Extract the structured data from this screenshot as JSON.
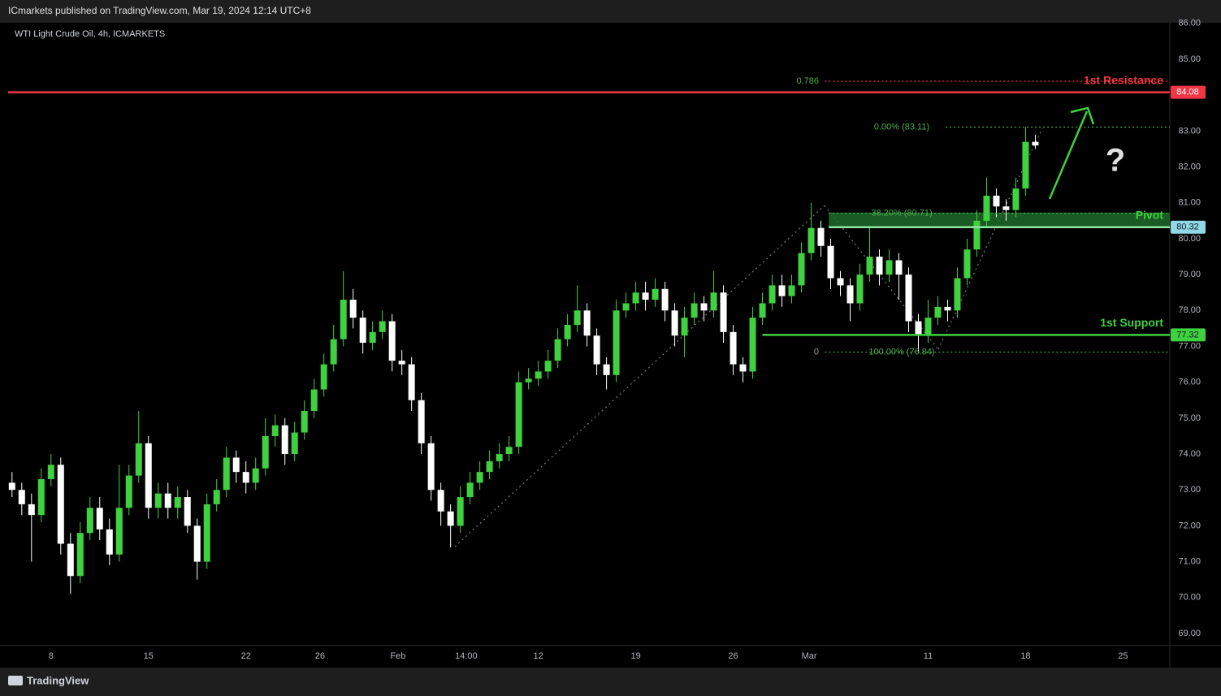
{
  "header": {
    "publisher": "ICmarkets published on TradingView.com, Mar 19, 2024 12:14 UTC+8"
  },
  "footer": {
    "brand": "TradingView"
  },
  "chart_data": {
    "type": "candlestick",
    "title": "WTI Light Crude Oil, 4h, ICMARKETS",
    "up_color": "#3fd13f",
    "down_color": "#ffffff",
    "grid": false,
    "x": [
      -2,
      -1.5,
      -1,
      -0.5,
      0,
      0.5,
      1,
      1.5,
      2,
      2.5,
      3,
      3.5,
      4,
      4.5,
      5,
      5.5,
      6,
      6.5,
      7,
      7.5,
      8,
      8.5,
      9,
      9.5,
      10,
      10.5,
      11,
      11.5,
      12,
      12.5,
      13,
      13.5,
      14,
      14.5,
      15,
      15.5,
      16,
      16.5,
      17,
      17.5,
      18,
      18.5,
      19,
      19.5,
      20,
      20.5,
      21,
      21.5,
      22,
      22.5,
      23,
      23.5,
      24,
      24.5,
      25,
      25.5,
      26,
      26.5,
      27,
      27.5,
      28,
      28.5,
      29,
      29.5,
      30,
      30.5,
      31,
      31.5,
      32,
      32.5,
      33,
      33.5,
      34,
      34.5,
      35,
      35.5,
      36,
      36.5,
      37,
      37.5,
      38,
      38.5,
      39,
      39.5,
      40,
      40.5,
      41,
      41.5,
      42,
      42.5,
      43,
      43.5,
      44,
      44.5,
      45,
      45.5,
      46,
      46.5,
      47,
      47.5,
      48,
      48.5,
      49,
      49.5,
      50,
      50.5
    ],
    "open": [
      73.2,
      73.0,
      72.6,
      72.3,
      73.3,
      73.7,
      71.5,
      70.6,
      71.8,
      72.5,
      71.9,
      71.2,
      72.5,
      73.4,
      74.3,
      72.5,
      72.9,
      72.5,
      72.8,
      72.0,
      71.0,
      72.6,
      73.0,
      73.9,
      73.5,
      73.2,
      73.6,
      74.5,
      74.8,
      74.0,
      74.6,
      75.2,
      75.8,
      76.5,
      77.2,
      78.3,
      77.8,
      77.1,
      77.4,
      77.7,
      76.6,
      76.5,
      75.5,
      74.3,
      73.0,
      72.4,
      72.0,
      72.8,
      73.2,
      73.5,
      73.8,
      74.0,
      74.2,
      76.0,
      76.1,
      76.3,
      76.6,
      77.2,
      77.6,
      78.0,
      77.3,
      76.5,
      76.2,
      78.0,
      78.2,
      78.5,
      78.3,
      78.6,
      78.0,
      77.3,
      77.8,
      78.2,
      78.0,
      78.5,
      77.4,
      76.5,
      76.3,
      77.8,
      78.2,
      78.7,
      78.4,
      78.7,
      79.6,
      80.3,
      79.8,
      78.9,
      78.7,
      78.2,
      79.0,
      79.5,
      79.0,
      79.4,
      79.0,
      77.7,
      77.3,
      77.8,
      78.1,
      78.0,
      78.9,
      79.7,
      80.5,
      81.2,
      80.9,
      80.8,
      81.4,
      82.7
    ],
    "high": [
      73.5,
      73.2,
      72.9,
      73.6,
      74.0,
      73.9,
      71.8,
      72.1,
      72.8,
      72.8,
      72.2,
      73.7,
      73.7,
      75.2,
      74.5,
      73.2,
      73.2,
      73.1,
      73.0,
      72.2,
      72.9,
      73.3,
      74.2,
      74.1,
      73.8,
      73.9,
      75.0,
      75.1,
      75.0,
      74.9,
      75.5,
      76.1,
      76.8,
      77.6,
      79.1,
      78.6,
      78.0,
      77.7,
      78.0,
      77.9,
      76.9,
      76.7,
      75.7,
      74.5,
      73.2,
      72.6,
      73.1,
      73.5,
      73.8,
      74.1,
      74.3,
      74.5,
      76.3,
      76.4,
      76.6,
      76.9,
      77.5,
      77.9,
      78.7,
      78.2,
      77.5,
      76.7,
      78.3,
      78.5,
      78.8,
      78.8,
      78.9,
      78.8,
      78.2,
      78.1,
      78.5,
      78.4,
      79.1,
      78.7,
      77.6,
      76.7,
      78.1,
      78.5,
      79.0,
      79.0,
      79.0,
      79.9,
      81.0,
      80.5,
      80.0,
      79.1,
      78.9,
      79.3,
      80.3,
      79.7,
      79.7,
      79.6,
      79.2,
      77.9,
      78.3,
      78.4,
      78.3,
      79.2,
      80.0,
      80.8,
      81.7,
      81.4,
      81.1,
      81.7,
      83.11,
      82.9
    ],
    "low": [
      72.8,
      72.3,
      71.0,
      72.1,
      73.1,
      71.2,
      70.1,
      70.4,
      71.6,
      71.6,
      70.9,
      71.0,
      72.3,
      73.2,
      72.2,
      72.2,
      72.2,
      72.2,
      71.8,
      70.5,
      70.8,
      72.4,
      72.8,
      73.2,
      72.9,
      73.0,
      73.4,
      74.2,
      73.7,
      73.8,
      74.4,
      75.0,
      75.6,
      76.3,
      77.0,
      77.5,
      76.8,
      76.9,
      77.2,
      76.3,
      76.2,
      75.2,
      74.0,
      72.7,
      72.0,
      71.4,
      71.8,
      72.6,
      73.0,
      73.3,
      73.6,
      73.8,
      74.0,
      75.8,
      75.9,
      76.1,
      76.4,
      77.0,
      77.4,
      77.0,
      76.2,
      75.8,
      76.0,
      77.8,
      78.0,
      78.0,
      78.1,
      77.7,
      77.0,
      76.7,
      77.6,
      77.7,
      77.8,
      77.1,
      76.2,
      76.0,
      76.1,
      77.6,
      78.0,
      78.1,
      78.2,
      78.5,
      79.4,
      79.5,
      78.6,
      78.4,
      77.7,
      78.0,
      78.8,
      78.7,
      78.8,
      78.3,
      77.4,
      76.84,
      77.1,
      77.6,
      77.7,
      77.8,
      78.7,
      79.5,
      80.3,
      80.6,
      80.5,
      80.6,
      81.2,
      82.5
    ],
    "close": [
      73.0,
      72.6,
      72.3,
      73.3,
      73.7,
      71.5,
      70.6,
      71.8,
      72.5,
      71.9,
      71.2,
      72.5,
      73.4,
      74.3,
      72.5,
      72.9,
      72.5,
      72.8,
      72.0,
      71.0,
      72.6,
      73.0,
      73.9,
      73.5,
      73.2,
      73.6,
      74.5,
      74.8,
      74.0,
      74.6,
      75.2,
      75.8,
      76.5,
      77.2,
      78.3,
      77.8,
      77.1,
      77.4,
      77.7,
      76.6,
      76.5,
      75.5,
      74.3,
      73.0,
      72.4,
      72.0,
      72.8,
      73.2,
      73.5,
      73.8,
      74.0,
      74.2,
      76.0,
      76.1,
      76.3,
      76.6,
      77.2,
      77.6,
      78.0,
      77.3,
      76.5,
      76.2,
      78.0,
      78.2,
      78.5,
      78.3,
      78.6,
      78.0,
      77.3,
      77.8,
      78.2,
      78.0,
      78.5,
      77.4,
      76.5,
      76.3,
      77.8,
      78.2,
      78.7,
      78.4,
      78.7,
      79.6,
      80.3,
      79.8,
      78.9,
      78.7,
      78.2,
      79.0,
      79.5,
      79.0,
      79.4,
      79.0,
      77.7,
      77.3,
      77.8,
      78.1,
      78.0,
      78.9,
      79.7,
      80.5,
      81.2,
      80.9,
      80.8,
      81.4,
      82.7,
      82.6
    ],
    "xlim": [
      -2.2,
      57.4
    ],
    "xticks": [
      {
        "value": 0,
        "label": "8"
      },
      {
        "value": 5,
        "label": "15"
      },
      {
        "value": 10,
        "label": "22"
      },
      {
        "value": 13.8,
        "label": "26"
      },
      {
        "value": 17.8,
        "label": "Feb"
      },
      {
        "value": 21.3,
        "label": "14:00"
      },
      {
        "value": 25,
        "label": "12"
      },
      {
        "value": 30,
        "label": "19"
      },
      {
        "value": 35,
        "label": "26"
      },
      {
        "value": 38.9,
        "label": "Mar"
      },
      {
        "value": 45,
        "label": "11"
      },
      {
        "value": 50,
        "label": "18"
      },
      {
        "value": 55,
        "label": "25"
      }
    ],
    "ylim": [
      68.66,
      86.2
    ],
    "yticks": [
      {
        "value": 69,
        "label": "69.00"
      },
      {
        "value": 70,
        "label": "70.00"
      },
      {
        "value": 71,
        "label": "71.00"
      },
      {
        "value": 72,
        "label": "72.00"
      },
      {
        "value": 73,
        "label": "73.00"
      },
      {
        "value": 74,
        "label": "74.00"
      },
      {
        "value": 75,
        "label": "75.00"
      },
      {
        "value": 76,
        "label": "76.00"
      },
      {
        "value": 77,
        "label": "77.00"
      },
      {
        "value": 78,
        "label": "78.00"
      },
      {
        "value": 79,
        "label": "79.00"
      },
      {
        "value": 80,
        "label": "80.00"
      },
      {
        "value": 81,
        "label": "81.00"
      },
      {
        "value": 82,
        "label": "82.00"
      },
      {
        "value": 83,
        "label": "83.00"
      },
      {
        "value": 84,
        "label": "84.00"
      },
      {
        "value": 85,
        "label": "85.00"
      },
      {
        "value": 86,
        "label": "86.00"
      }
    ],
    "levels": [
      {
        "name": "1st Resistance",
        "value": 84.08,
        "color": "#f23645",
        "box_color": "#f23645",
        "box_text": "#ffffff",
        "x_from": -2.2
      },
      {
        "name": "Pivot",
        "value": 80.32,
        "color": "#8ee6a0",
        "box_color": "#8fd9e6",
        "box_text": "#131722",
        "x_from": 39.9
      },
      {
        "name": "1st Support",
        "value": 77.32,
        "color": "#3fd13f",
        "box_color": "#3fd13f",
        "box_text": "#131722",
        "x_from": 36.5
      }
    ],
    "pivot_zone": {
      "from": 80.32,
      "to": 80.73,
      "x_from": 39.9,
      "color": "#1f6b2a"
    },
    "fib_levels": [
      {
        "left_label": "0.786",
        "value": 84.39,
        "color": "#f23645",
        "x_from": 39.7
      },
      {
        "label": "0.00% (83.11)",
        "value": 83.11,
        "color": "#4caf50",
        "x_from": 45.9
      },
      {
        "label": "38.20% (80.71)",
        "value": 80.71,
        "color": "#4caf50",
        "x_from": 39.9
      },
      {
        "label": "100.00% (76.84)",
        "left_label": "0",
        "value": 76.84,
        "color": "#4caf50",
        "x_from": 39.7
      }
    ],
    "annotations": [
      "?"
    ]
  }
}
